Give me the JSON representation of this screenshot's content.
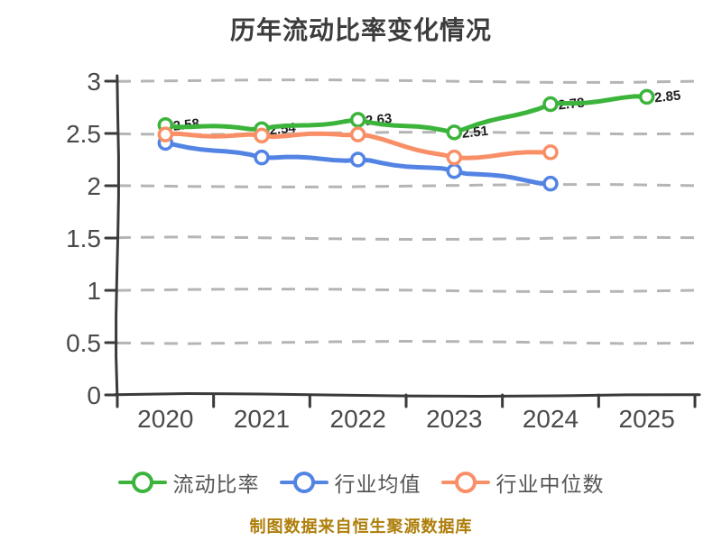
{
  "chart_data": {
    "type": "line",
    "title": "历年流动比率变化情况",
    "x_categories": [
      "2020",
      "2021",
      "2022",
      "2023",
      "2024",
      "2025"
    ],
    "series": [
      {
        "name": "流动比率",
        "color": "#3CB43C",
        "values": [
          2.58,
          2.54,
          2.63,
          2.51,
          2.78,
          2.85
        ],
        "point_labels": [
          "2.58",
          "2.54",
          "2.63",
          "2.51",
          "2.78",
          "2.85"
        ]
      },
      {
        "name": "行业均值",
        "color": "#5384E4",
        "values": [
          2.41,
          2.27,
          2.25,
          2.14,
          2.02
        ]
      },
      {
        "name": "行业中位数",
        "color": "#F98F66",
        "values": [
          2.49,
          2.48,
          2.49,
          2.27,
          2.32
        ]
      }
    ],
    "ylim": [
      0,
      3
    ],
    "ytick_labels": [
      "0",
      "0.5",
      "1",
      "1.5",
      "2",
      "2.5",
      "3"
    ],
    "grid": "horizontal-dashed",
    "legend_position": "bottom",
    "style": "hand-drawn-sketch"
  },
  "footer_note": "制图数据来自恒生聚源数据库",
  "colors": {
    "background": "#FFFFFF",
    "title": "#3C3C3C",
    "axis": "#3A3A3A",
    "grid": "#B5B5B5",
    "tick_label": "#4A4A4A",
    "legend_label": "#555555",
    "footer": "#AD7E0A",
    "marker_fill": "#FFFFFF",
    "point_label": "#1F1F1F"
  }
}
